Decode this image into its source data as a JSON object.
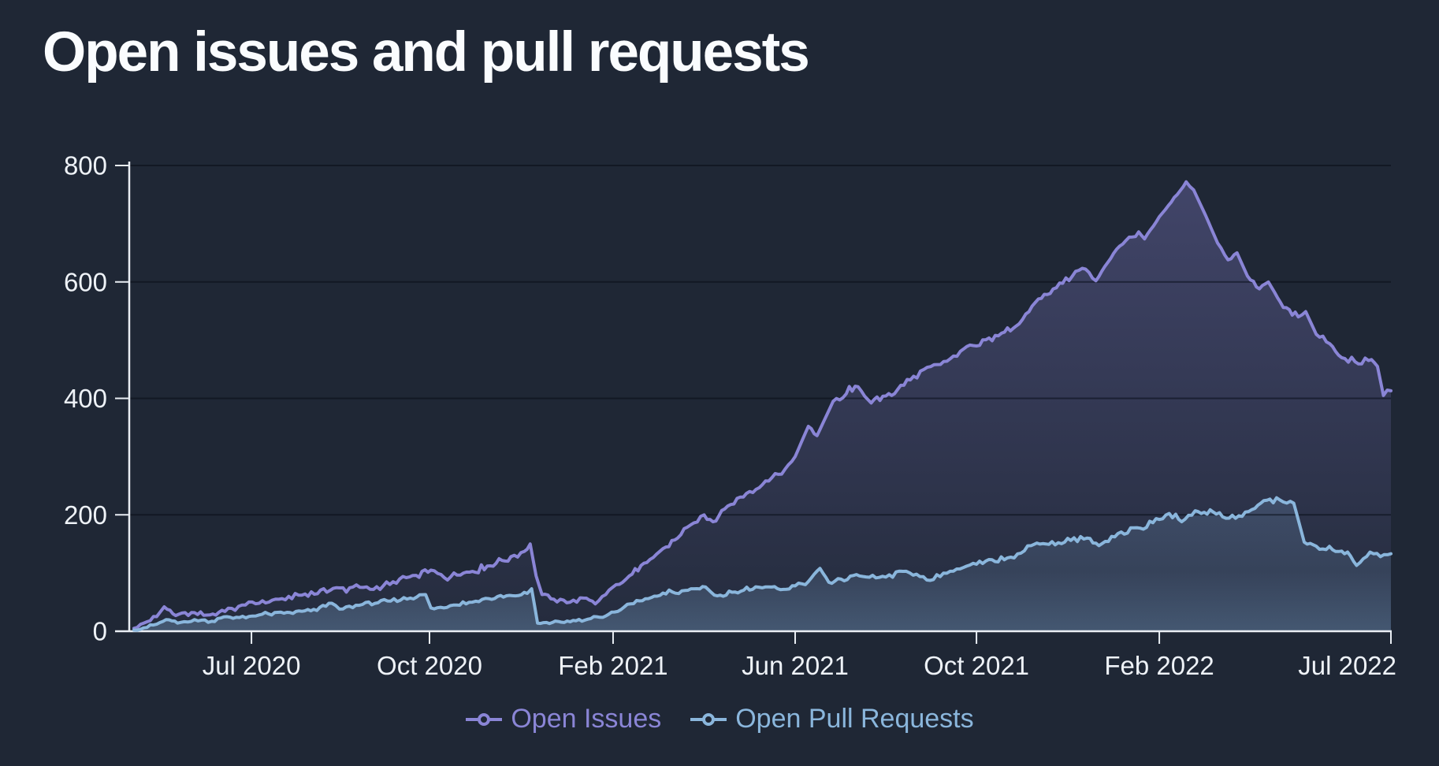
{
  "title": "Open issues and pull requests",
  "colors": {
    "background": "#1f2735",
    "title_text": "#fafcfe",
    "axis": "#e9eef4",
    "grid": "rgba(8,13,22,0.55)",
    "tick_text": "#eef2f7",
    "open_issues": "#8a85d6",
    "open_prs": "#8ab6dc"
  },
  "legend": {
    "items": [
      {
        "label": "Open Issues",
        "series": "open_issues"
      },
      {
        "label": "Open Pull Requests",
        "series": "open_prs"
      }
    ]
  },
  "chart_data": {
    "type": "line",
    "title": "Open issues and pull requests",
    "xlabel": "",
    "ylabel": "",
    "grid": "horizontal",
    "legend_position": "bottom-center",
    "y_axis": {
      "min": 0,
      "max": 800,
      "ticks": [
        0,
        200,
        400,
        600,
        800
      ]
    },
    "x_axis": {
      "ticks": [
        {
          "label": "Jul 2020",
          "date": "2020-07-01"
        },
        {
          "label": "Oct 2020",
          "date": "2020-10-01"
        },
        {
          "label": "Feb 2021",
          "date": "2021-02-01"
        },
        {
          "label": "Jun 2021",
          "date": "2021-06-01"
        },
        {
          "label": "Oct 2021",
          "date": "2021-10-01"
        },
        {
          "label": "Feb 2022",
          "date": "2022-02-01"
        },
        {
          "label": "Jul 2022",
          "date": "2022-07-01"
        }
      ],
      "anchors": [
        {
          "date": "2020-05-01",
          "f": 0.0031
        },
        {
          "date": "2020-07-01",
          "f": 0.0963
        },
        {
          "date": "2020-10-01",
          "f": 0.2375
        },
        {
          "date": "2021-02-01",
          "f": 0.3831
        },
        {
          "date": "2021-06-01",
          "f": 0.5275
        },
        {
          "date": "2021-10-01",
          "f": 0.6713
        },
        {
          "date": "2022-02-01",
          "f": 0.8163
        },
        {
          "date": "2022-07-01",
          "f": 1.0
        }
      ]
    },
    "series": [
      {
        "name": "Open Issues",
        "color_key": "open_issues",
        "points": [
          [
            "2020-05-01",
            5
          ],
          [
            "2020-05-13",
            25
          ],
          [
            "2020-05-17",
            42
          ],
          [
            "2020-05-23",
            27
          ],
          [
            "2020-06-02",
            32
          ],
          [
            "2020-06-10",
            28
          ],
          [
            "2020-06-18",
            34
          ],
          [
            "2020-06-27",
            45
          ],
          [
            "2020-07-05",
            48
          ],
          [
            "2020-07-17",
            56
          ],
          [
            "2020-07-29",
            64
          ],
          [
            "2020-08-11",
            70
          ],
          [
            "2020-08-23",
            76
          ],
          [
            "2020-09-01",
            72
          ],
          [
            "2020-09-13",
            85
          ],
          [
            "2020-09-25",
            96
          ],
          [
            "2020-10-02",
            105
          ],
          [
            "2020-10-11",
            92
          ],
          [
            "2020-10-24",
            100
          ],
          [
            "2020-11-09",
            112
          ],
          [
            "2020-11-25",
            128
          ],
          [
            "2020-12-03",
            137
          ],
          [
            "2020-12-07",
            150
          ],
          [
            "2020-12-11",
            95
          ],
          [
            "2020-12-15",
            63
          ],
          [
            "2020-12-23",
            55
          ],
          [
            "2021-01-03",
            50
          ],
          [
            "2021-01-12",
            57
          ],
          [
            "2021-01-20",
            47
          ],
          [
            "2021-01-27",
            63
          ],
          [
            "2021-02-03",
            80
          ],
          [
            "2021-02-12",
            95
          ],
          [
            "2021-02-24",
            118
          ],
          [
            "2021-03-04",
            142
          ],
          [
            "2021-03-14",
            160
          ],
          [
            "2021-03-25",
            186
          ],
          [
            "2021-04-01",
            200
          ],
          [
            "2021-04-07",
            188
          ],
          [
            "2021-04-17",
            215
          ],
          [
            "2021-05-01",
            240
          ],
          [
            "2021-05-14",
            258
          ],
          [
            "2021-05-25",
            278
          ],
          [
            "2021-06-01",
            300
          ],
          [
            "2021-06-10",
            352
          ],
          [
            "2021-06-16",
            336
          ],
          [
            "2021-06-27",
            395
          ],
          [
            "2021-07-05",
            408
          ],
          [
            "2021-07-13",
            420
          ],
          [
            "2021-07-22",
            392
          ],
          [
            "2021-08-01",
            404
          ],
          [
            "2021-08-09",
            415
          ],
          [
            "2021-08-20",
            438
          ],
          [
            "2021-09-03",
            458
          ],
          [
            "2021-09-14",
            468
          ],
          [
            "2021-09-21",
            481
          ],
          [
            "2021-10-01",
            490
          ],
          [
            "2021-10-18",
            512
          ],
          [
            "2021-10-30",
            528
          ],
          [
            "2021-11-10",
            565
          ],
          [
            "2021-11-22",
            588
          ],
          [
            "2021-12-04",
            610
          ],
          [
            "2021-12-13",
            622
          ],
          [
            "2021-12-20",
            602
          ],
          [
            "2022-01-03",
            656
          ],
          [
            "2022-01-18",
            686
          ],
          [
            "2022-01-22",
            674
          ],
          [
            "2022-02-01",
            712
          ],
          [
            "2022-02-11",
            745
          ],
          [
            "2022-02-19",
            772
          ],
          [
            "2022-02-24",
            758
          ],
          [
            "2022-03-01",
            714
          ],
          [
            "2022-03-09",
            667
          ],
          [
            "2022-03-16",
            638
          ],
          [
            "2022-03-22",
            650
          ],
          [
            "2022-03-29",
            610
          ],
          [
            "2022-04-06",
            588
          ],
          [
            "2022-04-12",
            600
          ],
          [
            "2022-04-22",
            556
          ],
          [
            "2022-05-01",
            540
          ],
          [
            "2022-05-06",
            549
          ],
          [
            "2022-05-13",
            510
          ],
          [
            "2022-05-22",
            494
          ],
          [
            "2022-05-30",
            470
          ],
          [
            "2022-06-08",
            463
          ],
          [
            "2022-06-17",
            465
          ],
          [
            "2022-06-23",
            455
          ],
          [
            "2022-06-27",
            405
          ],
          [
            "2022-07-01",
            413
          ]
        ]
      },
      {
        "name": "Open Pull Requests",
        "color_key": "open_prs",
        "points": [
          [
            "2020-05-01",
            2
          ],
          [
            "2020-05-13",
            12
          ],
          [
            "2020-05-18",
            20
          ],
          [
            "2020-05-24",
            14
          ],
          [
            "2020-06-02",
            20
          ],
          [
            "2020-06-11",
            17
          ],
          [
            "2020-06-19",
            25
          ],
          [
            "2020-06-29",
            23
          ],
          [
            "2020-07-05",
            28
          ],
          [
            "2020-07-18",
            31
          ],
          [
            "2020-08-01",
            35
          ],
          [
            "2020-08-12",
            48
          ],
          [
            "2020-08-16",
            38
          ],
          [
            "2020-08-28",
            46
          ],
          [
            "2020-09-10",
            52
          ],
          [
            "2020-09-22",
            57
          ],
          [
            "2020-09-30",
            63
          ],
          [
            "2020-10-02",
            40
          ],
          [
            "2020-10-15",
            44
          ],
          [
            "2020-10-30",
            50
          ],
          [
            "2020-11-10",
            56
          ],
          [
            "2020-11-26",
            61
          ],
          [
            "2020-12-05",
            65
          ],
          [
            "2020-12-08",
            73
          ],
          [
            "2020-12-12",
            14
          ],
          [
            "2020-12-22",
            15
          ],
          [
            "2021-01-07",
            18
          ],
          [
            "2021-01-23",
            24
          ],
          [
            "2021-02-02",
            33
          ],
          [
            "2021-02-13",
            47
          ],
          [
            "2021-02-25",
            56
          ],
          [
            "2021-03-06",
            64
          ],
          [
            "2021-03-19",
            70
          ],
          [
            "2021-04-02",
            76
          ],
          [
            "2021-04-08",
            62
          ],
          [
            "2021-04-20",
            67
          ],
          [
            "2021-05-03",
            72
          ],
          [
            "2021-05-16",
            76
          ],
          [
            "2021-05-26",
            72
          ],
          [
            "2021-06-01",
            78
          ],
          [
            "2021-06-08",
            80
          ],
          [
            "2021-06-18",
            108
          ],
          [
            "2021-06-24",
            84
          ],
          [
            "2021-07-14",
            95
          ],
          [
            "2021-08-01",
            93
          ],
          [
            "2021-08-15",
            103
          ],
          [
            "2021-08-29",
            88
          ],
          [
            "2021-09-14",
            103
          ],
          [
            "2021-10-01",
            115
          ],
          [
            "2021-10-22",
            126
          ],
          [
            "2021-11-07",
            147
          ],
          [
            "2021-11-17",
            150
          ],
          [
            "2021-12-03",
            156
          ],
          [
            "2021-12-14",
            160
          ],
          [
            "2021-12-22",
            147
          ],
          [
            "2022-01-04",
            168
          ],
          [
            "2022-01-19",
            177
          ],
          [
            "2022-02-01",
            192
          ],
          [
            "2022-02-12",
            201
          ],
          [
            "2022-02-16",
            188
          ],
          [
            "2022-02-25",
            207
          ],
          [
            "2022-03-06",
            205
          ],
          [
            "2022-03-21",
            194
          ],
          [
            "2022-04-01",
            209
          ],
          [
            "2022-04-13",
            227
          ],
          [
            "2022-04-22",
            222
          ],
          [
            "2022-04-29",
            220
          ],
          [
            "2022-05-05",
            153
          ],
          [
            "2022-05-13",
            146
          ],
          [
            "2022-05-24",
            140
          ],
          [
            "2022-06-03",
            136
          ],
          [
            "2022-06-09",
            113
          ],
          [
            "2022-06-18",
            136
          ],
          [
            "2022-06-25",
            128
          ],
          [
            "2022-07-01",
            133
          ]
        ]
      }
    ]
  }
}
